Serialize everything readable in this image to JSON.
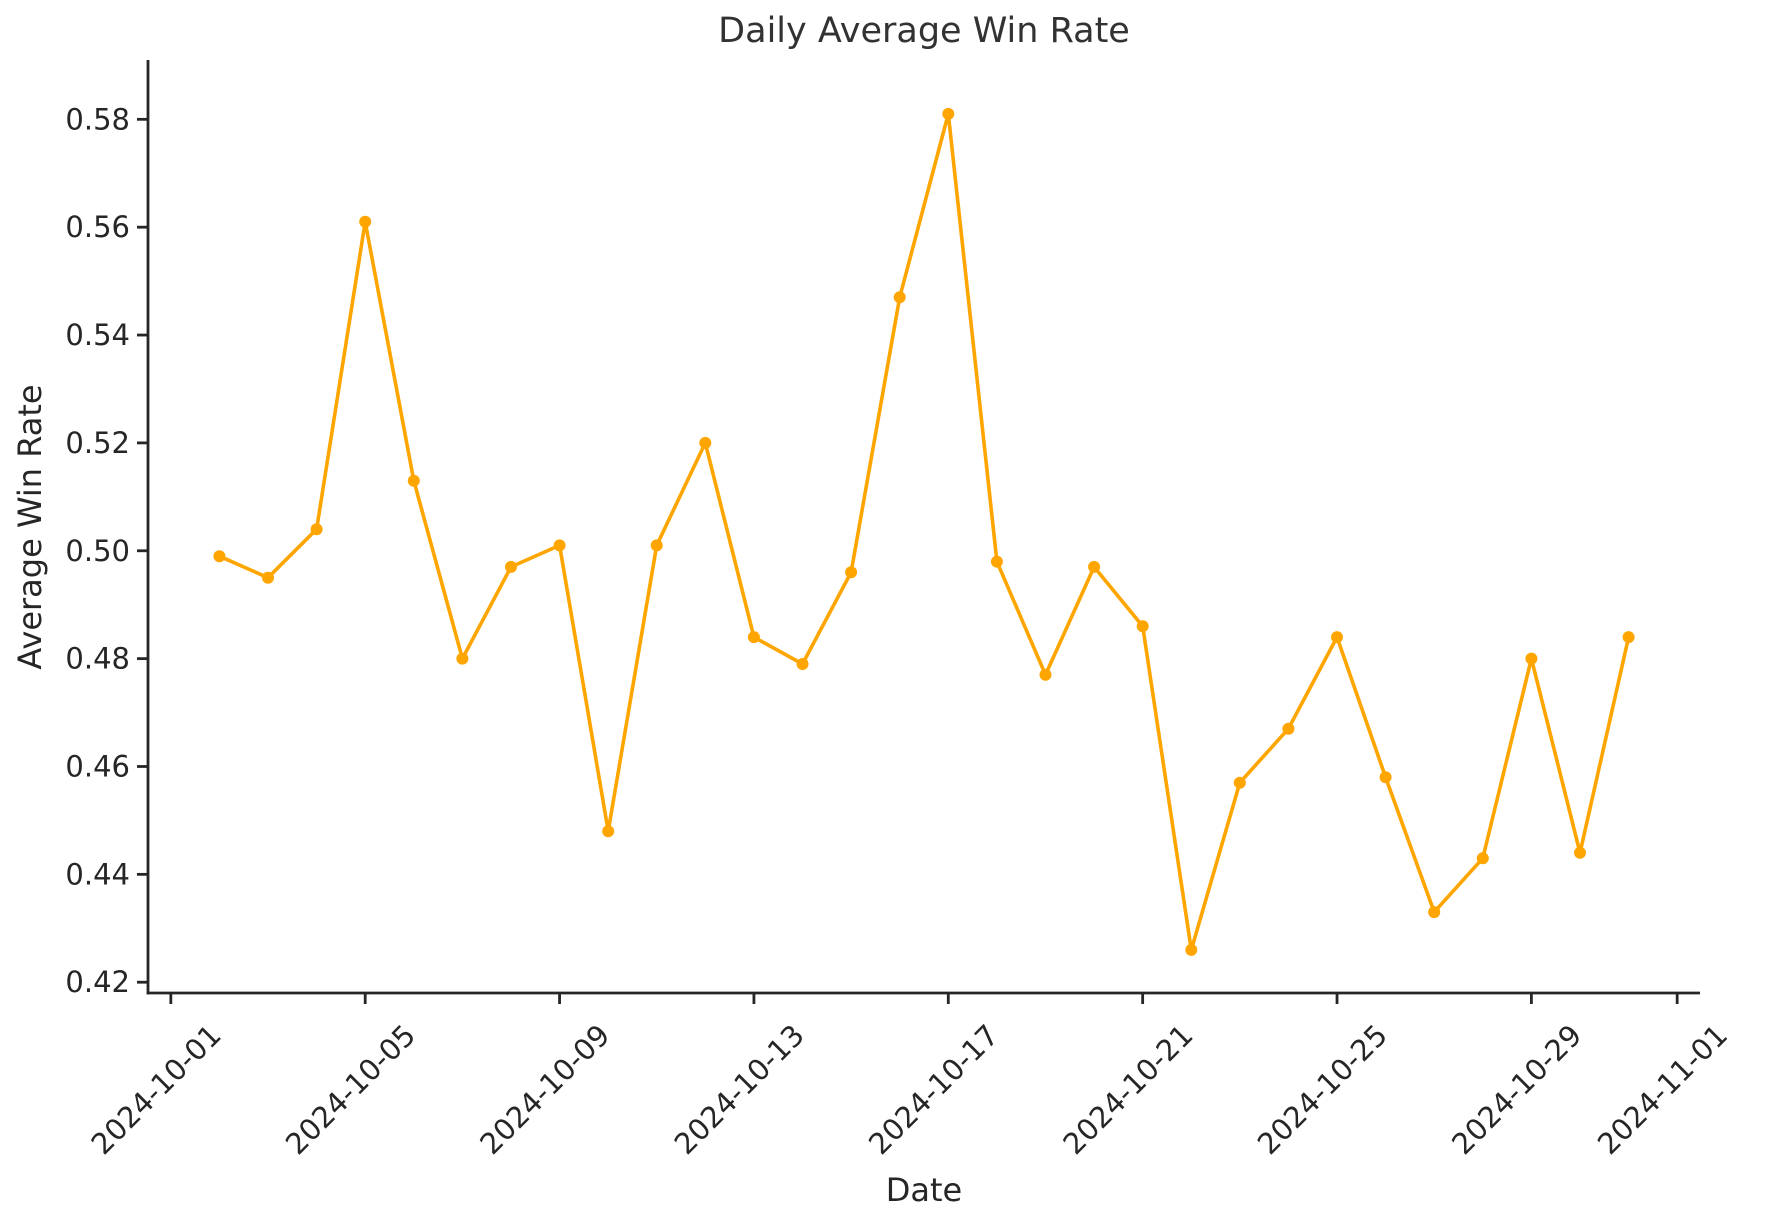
{
  "title": "Daily Average Win Rate",
  "chart_data": {
    "type": "line",
    "title": "Daily Average Win Rate",
    "xlabel": "Date",
    "ylabel": "Average Win Rate",
    "line_color": "#FFA500",
    "text_color": "#262626",
    "spine_color": "#262626",
    "grid": false,
    "legend": null,
    "marker": "circle",
    "x": [
      "2024-10-02",
      "2024-10-03",
      "2024-10-04",
      "2024-10-05",
      "2024-10-06",
      "2024-10-07",
      "2024-10-08",
      "2024-10-09",
      "2024-10-10",
      "2024-10-11",
      "2024-10-12",
      "2024-10-13",
      "2024-10-14",
      "2024-10-15",
      "2024-10-16",
      "2024-10-17",
      "2024-10-18",
      "2024-10-19",
      "2024-10-20",
      "2024-10-21",
      "2024-10-22",
      "2024-10-23",
      "2024-10-24",
      "2024-10-25",
      "2024-10-26",
      "2024-10-27",
      "2024-10-28",
      "2024-10-29",
      "2024-10-30",
      "2024-10-31"
    ],
    "values": [
      0.499,
      0.495,
      0.504,
      0.561,
      0.513,
      0.48,
      0.497,
      0.501,
      0.448,
      0.501,
      0.52,
      0.484,
      0.479,
      0.496,
      0.547,
      0.581,
      0.498,
      0.477,
      0.497,
      0.486,
      0.426,
      0.457,
      0.467,
      0.484,
      0.458,
      0.433,
      0.443,
      0.48,
      0.444,
      0.484
    ],
    "x_tick_labels": [
      "2024-10-01",
      "2024-10-05",
      "2024-10-09",
      "2024-10-13",
      "2024-10-17",
      "2024-10-21",
      "2024-10-25",
      "2024-10-29",
      "2024-11-01"
    ],
    "y_ticks": [
      0.42,
      0.44,
      0.46,
      0.48,
      0.5,
      0.52,
      0.54,
      0.56,
      0.58
    ],
    "ylim": [
      0.418,
      0.591
    ],
    "xlim_days": [
      -0.47,
      31.47
    ]
  }
}
